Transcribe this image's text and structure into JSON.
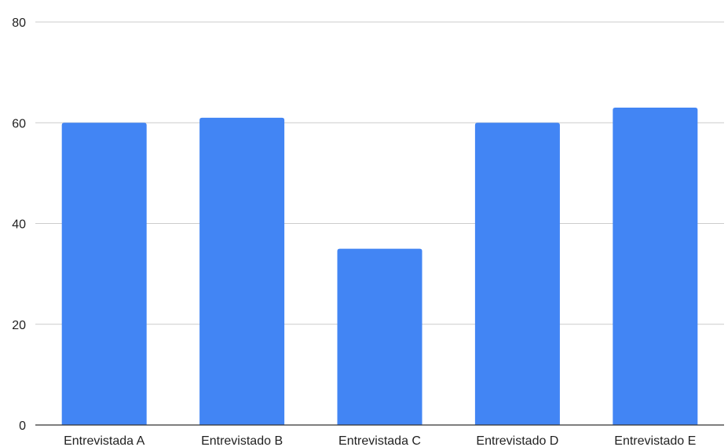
{
  "chart_data": {
    "type": "bar",
    "title": "",
    "xlabel": "",
    "ylabel": "",
    "categories": [
      "Entrevistada A",
      "Entrevistado B",
      "Entrevistada C",
      "Entrevistado D",
      "Entrevistado E"
    ],
    "values": [
      60,
      61,
      35,
      60,
      63
    ],
    "ylim": [
      0,
      80
    ],
    "yticks": [
      0,
      20,
      40,
      60,
      80
    ],
    "grid": true,
    "legend": "none",
    "colors": {
      "bar": "#4285f4",
      "grid": "#cccccc",
      "axis": "#333333",
      "text": "#222222"
    }
  }
}
